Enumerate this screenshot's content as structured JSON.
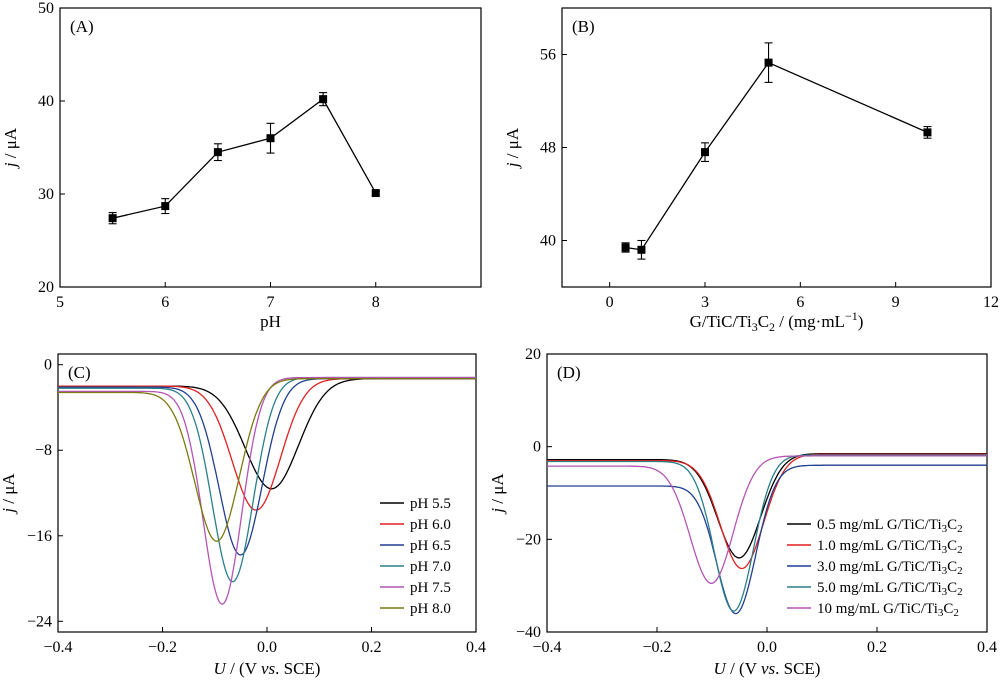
{
  "chart_data": [
    {
      "panel": "(A)",
      "type": "scatter",
      "markers": "square",
      "connected": true,
      "xlabel": "pH",
      "ylabel_italic": "j",
      "ylabel_rest": " / μA",
      "xlim": [
        5,
        9
      ],
      "ylim": [
        20,
        50
      ],
      "xticks": [
        5,
        6,
        7,
        8
      ],
      "yticks": [
        20,
        30,
        40,
        50
      ],
      "x": [
        5.5,
        6.0,
        6.5,
        7.0,
        7.5,
        8.0
      ],
      "y": [
        27.4,
        28.7,
        34.5,
        36.0,
        40.2,
        30.1
      ],
      "yerr": [
        0.6,
        0.8,
        0.9,
        1.6,
        0.7,
        0.2
      ]
    },
    {
      "panel": "(B)",
      "type": "scatter",
      "markers": "square",
      "connected": true,
      "xlabel_main": "G/TiC/Ti",
      "xlabel_sub1": "3",
      "xlabel_mid": "C",
      "xlabel_sub2": "2",
      "xlabel_end": " / (mg·mL",
      "xlabel_sup": "−1",
      "xlabel_close": ")",
      "ylabel_italic": "j",
      "ylabel_rest": " / μA",
      "xlim": [
        -1.5,
        12
      ],
      "ylim": [
        36,
        60
      ],
      "xticks": [
        0,
        3,
        6,
        9,
        12
      ],
      "yticks": [
        40,
        48,
        56
      ],
      "x": [
        0.5,
        1.0,
        3.0,
        5.0,
        10.0
      ],
      "y": [
        39.4,
        39.2,
        47.6,
        55.3,
        49.3
      ],
      "yerr": [
        0.4,
        0.8,
        0.8,
        1.7,
        0.5
      ]
    },
    {
      "panel": "(C)",
      "type": "line",
      "xlabel_italic": "U",
      "xlabel_rest": " / (V ",
      "xlabel_vs": "vs",
      "xlabel_end": ". SCE)",
      "ylabel_italic": "j",
      "ylabel_rest": " / μA",
      "xlim": [
        -0.4,
        0.4
      ],
      "ylim": [
        -25,
        1
      ],
      "xticks": [
        -0.4,
        -0.2,
        0.0,
        0.2,
        0.4
      ],
      "xticklabels": [
        "−0.4",
        "−0.2",
        "0.0",
        "0.2",
        "0.4"
      ],
      "yticks": [
        0,
        -8,
        -16,
        -24
      ],
      "yticklabels": [
        "0",
        "−8",
        "−16",
        "−24"
      ],
      "legend_position": "lower-right",
      "series": [
        {
          "name": "pH 5.5",
          "color": "#000000",
          "peak_x": 0.01,
          "peak_y": -11.6,
          "width": 0.072,
          "base_left": -2.0,
          "base_right": -1.3
        },
        {
          "name": "pH 6.0",
          "color": "#e02020",
          "peak_x": -0.02,
          "peak_y": -13.6,
          "width": 0.065,
          "base_left": -2.0,
          "base_right": -1.3
        },
        {
          "name": "pH 6.5",
          "color": "#1f3f8f",
          "peak_x": -0.05,
          "peak_y": -17.8,
          "width": 0.058,
          "base_left": -2.1,
          "base_right": -1.3
        },
        {
          "name": "pH 7.0",
          "color": "#2a7f8a",
          "peak_x": -0.065,
          "peak_y": -20.3,
          "width": 0.055,
          "base_left": -2.2,
          "base_right": -1.2
        },
        {
          "name": "pH 7.5",
          "color": "#b455b4",
          "peak_x": -0.085,
          "peak_y": -22.4,
          "width": 0.052,
          "base_left": -2.5,
          "base_right": -1.2
        },
        {
          "name": "pH 8.0",
          "color": "#7d7a10",
          "peak_x": -0.095,
          "peak_y": -16.5,
          "width": 0.06,
          "base_left": -2.6,
          "base_right": -1.3
        }
      ]
    },
    {
      "panel": "(D)",
      "type": "line",
      "xlabel_italic": "U",
      "xlabel_rest": " / (V ",
      "xlabel_vs": "vs",
      "xlabel_end": ". SCE)",
      "ylabel_italic": "j",
      "ylabel_rest": " / μA",
      "xlim": [
        -0.4,
        0.4
      ],
      "ylim": [
        -40,
        20
      ],
      "xticks": [
        -0.4,
        -0.2,
        0.0,
        0.2,
        0.4
      ],
      "xticklabels": [
        "−0.4",
        "−0.2",
        "0.0",
        "0.2",
        "0.4"
      ],
      "yticks": [
        20,
        0,
        -20,
        -40
      ],
      "yticklabels": [
        "20",
        "0",
        "−20",
        "−40"
      ],
      "legend_position": "lower-right",
      "series": [
        {
          "name_main": "0.5 mg/mL G/TiC/Ti",
          "name_sub1": "3",
          "name_mid": "C",
          "name_sub2": "2",
          "color": "#000000",
          "peak_x": -0.05,
          "peak_y": -24.0,
          "width": 0.055,
          "base_left": -2.8,
          "base_right": -1.5
        },
        {
          "name_main": "1.0 mg/mL G/TiC/Ti",
          "name_sub1": "3",
          "name_mid": "C",
          "name_sub2": "2",
          "color": "#e02020",
          "peak_x": -0.045,
          "peak_y": -26.3,
          "width": 0.055,
          "base_left": -3.0,
          "base_right": -1.6
        },
        {
          "name_main": "3.0 mg/mL G/TiC/Ti",
          "name_sub1": "3",
          "name_mid": "C",
          "name_sub2": "2",
          "color": "#1f3f8f",
          "peak_x": -0.055,
          "peak_y": -36.0,
          "width": 0.05,
          "base_left": -8.5,
          "base_right": -4.0
        },
        {
          "name_main": "5.0 mg/mL G/TiC/Ti",
          "name_sub1": "3",
          "name_mid": "C",
          "name_sub2": "2",
          "color": "#2a7f8a",
          "peak_x": -0.06,
          "peak_y": -35.5,
          "width": 0.05,
          "base_left": -3.2,
          "base_right": -1.8
        },
        {
          "name_main": "10 mg/mL G/TiC/Ti",
          "name_sub1": "3",
          "name_mid": "C",
          "name_sub2": "2",
          "color": "#b455b4",
          "peak_x": -0.1,
          "peak_y": -29.5,
          "width": 0.055,
          "base_left": -4.2,
          "base_right": -2.0
        }
      ]
    }
  ]
}
